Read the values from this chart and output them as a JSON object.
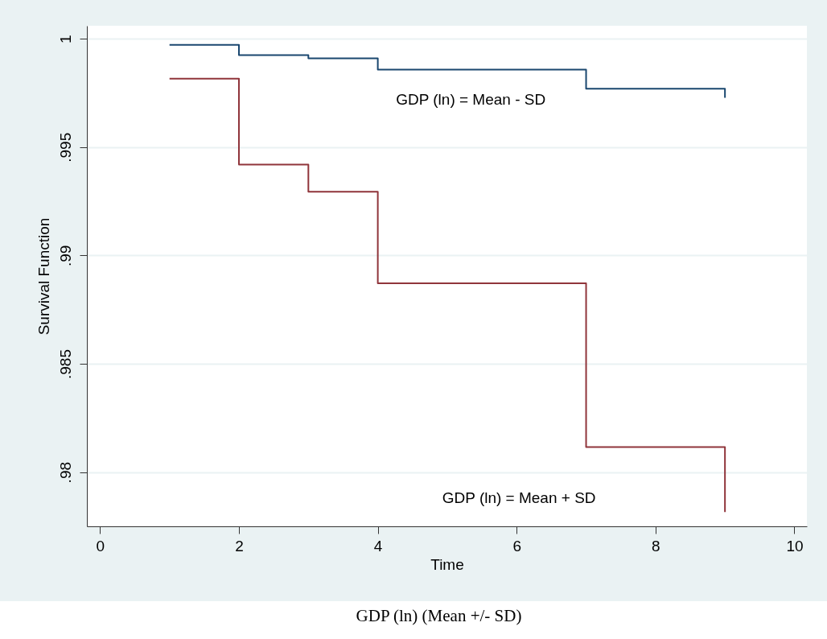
{
  "chart_data": {
    "type": "step",
    "xlabel": "Time",
    "ylabel": "Survival Function",
    "series": [
      {
        "name": "GDP (ln) = Mean - SD",
        "color": "#1a476f",
        "x": [
          1,
          2,
          3,
          4,
          7,
          9,
          9
        ],
        "values": [
          0.99972,
          0.99924,
          0.9991,
          0.99858,
          0.99769,
          0.99769,
          0.99728
        ]
      },
      {
        "name": "GDP (ln) = Mean + SD",
        "color": "#90353b",
        "x": [
          1,
          2,
          3,
          4,
          7,
          9,
          9
        ],
        "values": [
          0.99816,
          0.99419,
          0.99294,
          0.98872,
          0.98116,
          0.98116,
          0.97816
        ]
      }
    ],
    "xlim": [
      -0.19,
      10.18
    ],
    "xticks": [
      0,
      2,
      4,
      6,
      8,
      10
    ],
    "ylim": [
      0.9775,
      1.0006
    ],
    "yticks": [
      {
        "value": 0.98,
        "label": ".98"
      },
      {
        "value": 0.985,
        "label": ".985"
      },
      {
        "value": 0.99,
        "label": ".99"
      },
      {
        "value": 0.995,
        "label": ".995"
      },
      1
    ],
    "grid": "y",
    "line_style": "solid",
    "annotations": [
      "GDP (ln) (Mean +/- SD)"
    ]
  }
}
